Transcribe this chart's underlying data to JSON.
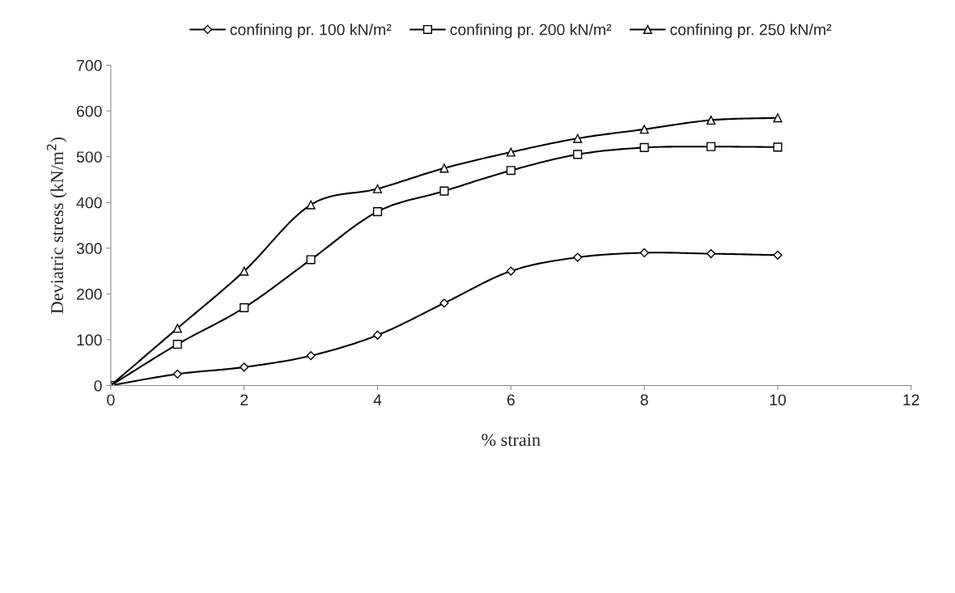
{
  "chart_data": {
    "type": "line",
    "xlabel": "% strain",
    "ylabel": "Deviatric stress (kN/m$^{2}$)",
    "x": [
      0,
      1,
      2,
      3,
      4,
      5,
      6,
      7,
      8,
      9,
      10
    ],
    "series": [
      {
        "name": "confining pr. 100 kN/m²",
        "color": "#000000",
        "marker": "diamond",
        "values": [
          0,
          25,
          40,
          65,
          110,
          180,
          250,
          280,
          290,
          288,
          285
        ]
      },
      {
        "name": "confining pr. 200 kN/m²",
        "color": "#000000",
        "marker": "square",
        "values": [
          0,
          90,
          170,
          275,
          380,
          425,
          470,
          505,
          520,
          522,
          521
        ]
      },
      {
        "name": "confining pr. 250 kN/m²",
        "color": "#000000",
        "marker": "triangle",
        "values": [
          0,
          125,
          250,
          395,
          430,
          475,
          510,
          540,
          560,
          580,
          585
        ]
      }
    ],
    "xlim": [
      0,
      12
    ],
    "xticks": [
      0,
      2,
      4,
      6,
      8,
      10,
      12
    ],
    "ylim": [
      0,
      700
    ],
    "yticks": [
      0,
      100,
      200,
      300,
      400,
      500,
      600,
      700
    ],
    "grid": false,
    "legend": "top",
    "line_style": "solid"
  }
}
